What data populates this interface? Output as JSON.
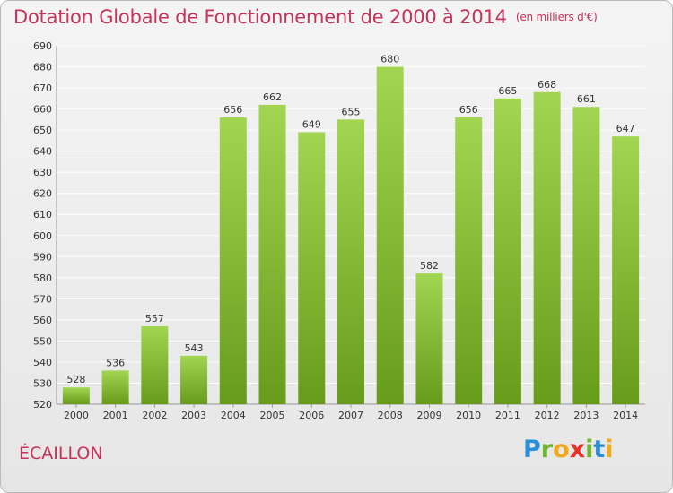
{
  "title": "Dotation Globale de Fonctionnement de 2000 à 2014",
  "unit_note": "(en milliers d'€)",
  "commune": "ÉCAILLON",
  "logo_text": "Proxiti",
  "colors": {
    "title": "#c8325a",
    "bar_top": "#9fd24e",
    "bar_bottom": "#6a9e1c",
    "grid": "#ffffff"
  },
  "chart_data": {
    "type": "bar",
    "title": "Dotation Globale de Fonctionnement de 2000 à 2014",
    "xlabel": "",
    "ylabel": "",
    "ylim": [
      520,
      690
    ],
    "yticks": [
      520,
      530,
      540,
      550,
      560,
      570,
      580,
      590,
      600,
      610,
      620,
      630,
      640,
      650,
      660,
      670,
      680,
      690
    ],
    "grid": true,
    "categories": [
      "2000",
      "2001",
      "2002",
      "2003",
      "2004",
      "2005",
      "2006",
      "2007",
      "2008",
      "2009",
      "2010",
      "2011",
      "2012",
      "2013",
      "2014"
    ],
    "values": [
      528,
      536,
      557,
      543,
      656,
      662,
      649,
      655,
      680,
      582,
      656,
      665,
      668,
      661,
      647
    ]
  }
}
